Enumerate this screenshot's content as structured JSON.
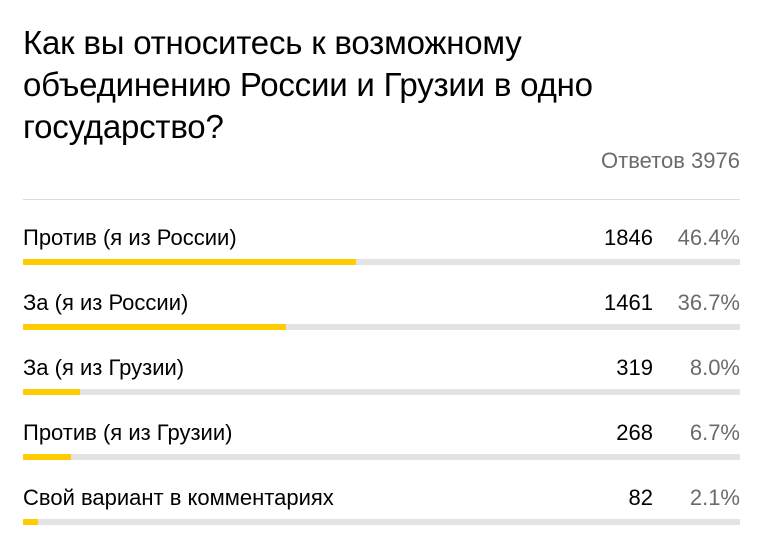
{
  "poll": {
    "question": "Как вы относитесь к возможному объединению России и Грузии в одно государство?",
    "total_label": "Ответов 3976",
    "accent_color": "#ffcc00",
    "options": [
      {
        "label": "Против (я из России)",
        "count": "1846",
        "percent": "46.4%",
        "fraction": 0.464
      },
      {
        "label": "За (я из России)",
        "count": "1461",
        "percent": "36.7%",
        "fraction": 0.367
      },
      {
        "label": "За (я из Грузии)",
        "count": "319",
        "percent": "8.0%",
        "fraction": 0.08
      },
      {
        "label": "Против (я из Грузии)",
        "count": "268",
        "percent": "6.7%",
        "fraction": 0.067
      },
      {
        "label": "Свой вариант в комментариях",
        "count": "82",
        "percent": "2.1%",
        "fraction": 0.021
      }
    ]
  }
}
